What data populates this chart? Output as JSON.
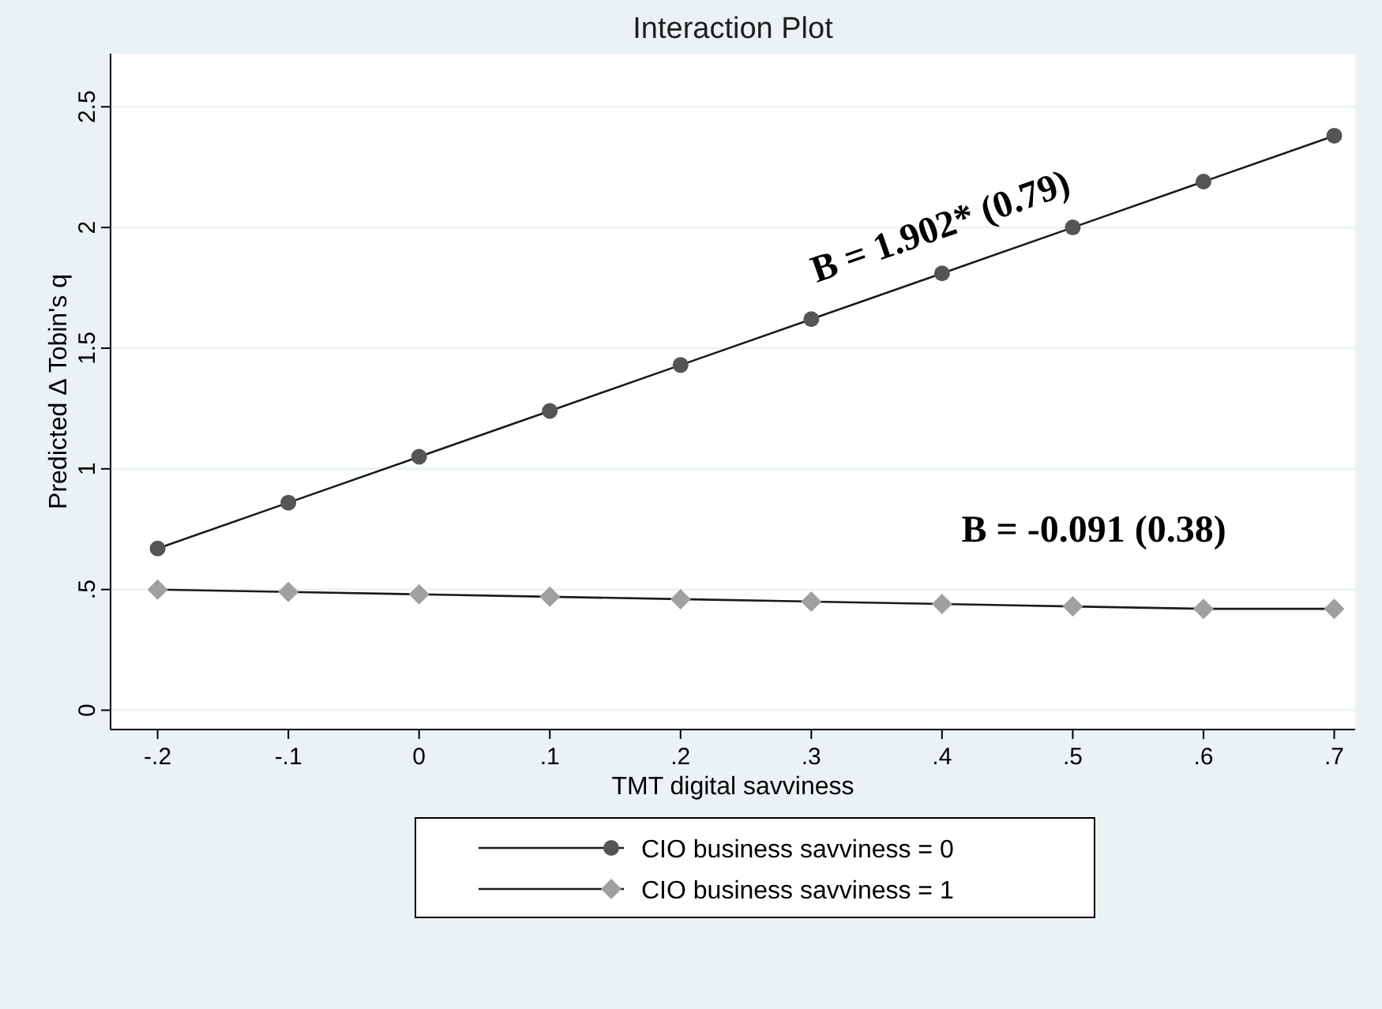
{
  "chart_data": {
    "type": "line",
    "title": "Interaction Plot",
    "xlabel": "TMT digital savviness",
    "ylabel": "Predicted Δ Tobin's q",
    "x": [
      -0.2,
      -0.1,
      0,
      0.1,
      0.2,
      0.3,
      0.4,
      0.5,
      0.6,
      0.7
    ],
    "series": [
      {
        "name": "CIO business savviness = 0",
        "color": "#555555",
        "marker": "circle",
        "values": [
          0.67,
          0.86,
          1.05,
          1.24,
          1.43,
          1.62,
          1.81,
          2.0,
          2.19,
          2.38
        ]
      },
      {
        "name": "CIO business savviness = 1",
        "color": "#a0a0a0",
        "marker": "diamond",
        "values": [
          0.5,
          0.49,
          0.48,
          0.47,
          0.46,
          0.45,
          0.44,
          0.43,
          0.42,
          0.42
        ]
      }
    ],
    "xlim": [
      -0.236,
      0.716
    ],
    "ylim": [
      -0.08,
      2.72
    ],
    "xticks": [
      {
        "value": -0.2,
        "label": "-.2"
      },
      {
        "value": -0.1,
        "label": "-.1"
      },
      0,
      {
        "value": 0.1,
        "label": ".1"
      },
      {
        "value": 0.2,
        "label": ".2"
      },
      {
        "value": 0.3,
        "label": ".3"
      },
      {
        "value": 0.4,
        "label": ".4"
      },
      {
        "value": 0.5,
        "label": ".5"
      },
      {
        "value": 0.6,
        "label": ".6"
      },
      {
        "value": 0.7,
        "label": ".7"
      }
    ],
    "yticks": [
      0,
      {
        "value": 0.5,
        "label": ".5"
      },
      1,
      {
        "value": 1.5,
        "label": "1.5"
      },
      2,
      {
        "value": 2.5,
        "label": "2.5"
      }
    ],
    "grid": "y",
    "legend": "bottom",
    "line_style": "solid",
    "annotations": [
      "B = 1.902* (0.79)",
      "B = -0.091 (0.38)"
    ]
  }
}
